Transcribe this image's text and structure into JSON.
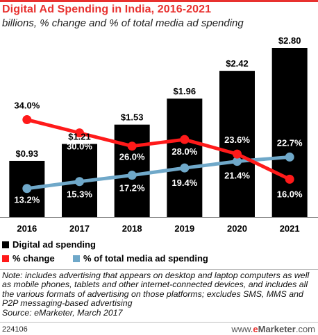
{
  "header": {
    "title": "Digital Ad Spending in India, 2016-2021",
    "subtitle": "billions, % change and % of total media ad spending"
  },
  "colors": {
    "accent": "#e8312f",
    "bar": "#000000",
    "pct_change": "#ff1a1a",
    "pct_total": "#6fa8c9"
  },
  "chart_data": {
    "type": "bar",
    "categories": [
      "2016",
      "2017",
      "2018",
      "2019",
      "2020",
      "2021"
    ],
    "series": [
      {
        "name": "Digital ad spending",
        "type": "bar",
        "values": [
          0.93,
          1.21,
          1.53,
          1.96,
          2.42,
          2.8
        ],
        "labels": [
          "$0.93",
          "$1.21",
          "$1.53",
          "$1.96",
          "$2.42",
          "$2.80"
        ]
      },
      {
        "name": "% change",
        "type": "line",
        "values": [
          34.0,
          30.0,
          26.0,
          28.0,
          23.6,
          16.0
        ],
        "labels": [
          "34.0%",
          "30.0%",
          "26.0%",
          "28.0%",
          "23.6%",
          "16.0%"
        ]
      },
      {
        "name": "% of total media ad spending",
        "type": "line",
        "values": [
          13.2,
          15.3,
          17.2,
          19.4,
          21.4,
          22.7
        ],
        "labels": [
          "13.2%",
          "15.3%",
          "17.2%",
          "19.4%",
          "21.4%",
          "22.7%"
        ]
      }
    ],
    "legend_position": "bottom-left",
    "grid": false
  },
  "legend": {
    "items": [
      {
        "label": "Digital ad spending",
        "color": "#000000"
      },
      {
        "label": "% change",
        "color": "#ff1a1a"
      },
      {
        "label": "% of total media ad spending",
        "color": "#6fa8c9"
      }
    ]
  },
  "note": {
    "text": "Note: includes advertising that appears on desktop and laptop computers as well as mobile phones, tablets and other internet-connected devices, and includes all the various formats of advertising on those platforms; excludes SMS, MMS and P2P messaging-based advertising",
    "source": "Source: eMarketer, March 2017"
  },
  "footer": {
    "chart_id": "224106",
    "site_prefix": "www.",
    "brand_e": "e",
    "brand_rest": "Marketer",
    "site_suffix": ".com"
  }
}
